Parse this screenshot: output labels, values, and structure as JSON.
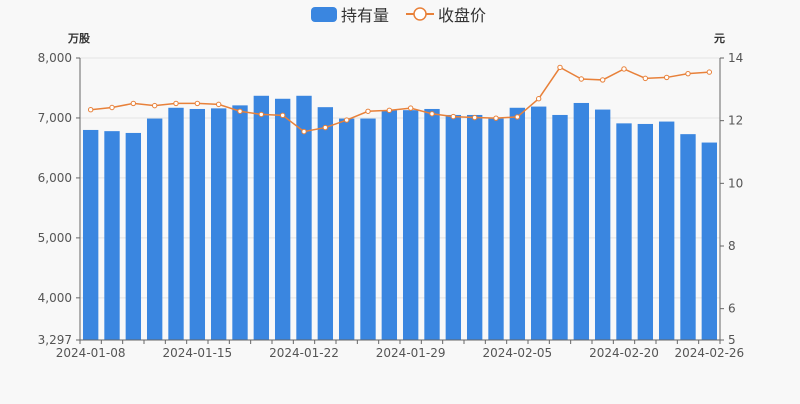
{
  "chart_data": {
    "type": "bar",
    "legend": [
      {
        "name": "持有量",
        "kind": "bar",
        "color": "#3a86e0"
      },
      {
        "name": "收盘价",
        "kind": "line",
        "color": "#e8813a"
      }
    ],
    "legend_position": "top-center",
    "left_axis": {
      "unit": "万股",
      "ylim": [
        3297,
        8000
      ],
      "ticks": [
        3297,
        4000,
        5000,
        6000,
        7000,
        8000
      ],
      "tick_labels": [
        "3,297",
        "4,000",
        "5,000",
        "6,000",
        "7,000",
        "8,000"
      ]
    },
    "right_axis": {
      "unit": "元",
      "ylim": [
        5,
        14
      ],
      "ticks": [
        5,
        6,
        8,
        10,
        12,
        14
      ],
      "tick_labels": [
        "5",
        "6",
        "8",
        "10",
        "12",
        "14"
      ]
    },
    "x_tick_labels": [
      {
        "index": 0,
        "label": "2024-01-08"
      },
      {
        "index": 5,
        "label": "2024-01-15"
      },
      {
        "index": 10,
        "label": "2024-01-22"
      },
      {
        "index": 15,
        "label": "2024-01-29"
      },
      {
        "index": 20,
        "label": "2024-02-05"
      },
      {
        "index": 25,
        "label": "2024-02-20"
      },
      {
        "index": 29,
        "label": "2024-02-26"
      }
    ],
    "series": [
      {
        "name": "持有量",
        "axis": "left",
        "values": [
          6800,
          6780,
          6750,
          6990,
          7170,
          7150,
          7160,
          7210,
          7370,
          7320,
          7370,
          7180,
          6990,
          6990,
          7130,
          7130,
          7150,
          7050,
          7050,
          6990,
          7170,
          7190,
          7050,
          7250,
          7140,
          6910,
          6900,
          6940,
          6730,
          6590
        ]
      },
      {
        "name": "收盘价",
        "axis": "right",
        "values": [
          12.35,
          12.42,
          12.55,
          12.48,
          12.55,
          12.55,
          12.52,
          12.3,
          12.2,
          12.17,
          11.65,
          11.78,
          12.02,
          12.3,
          12.33,
          12.4,
          12.22,
          12.13,
          12.1,
          12.08,
          12.12,
          12.7,
          13.7,
          13.33,
          13.3,
          13.65,
          13.35,
          13.38,
          13.5,
          13.55
        ]
      }
    ]
  }
}
